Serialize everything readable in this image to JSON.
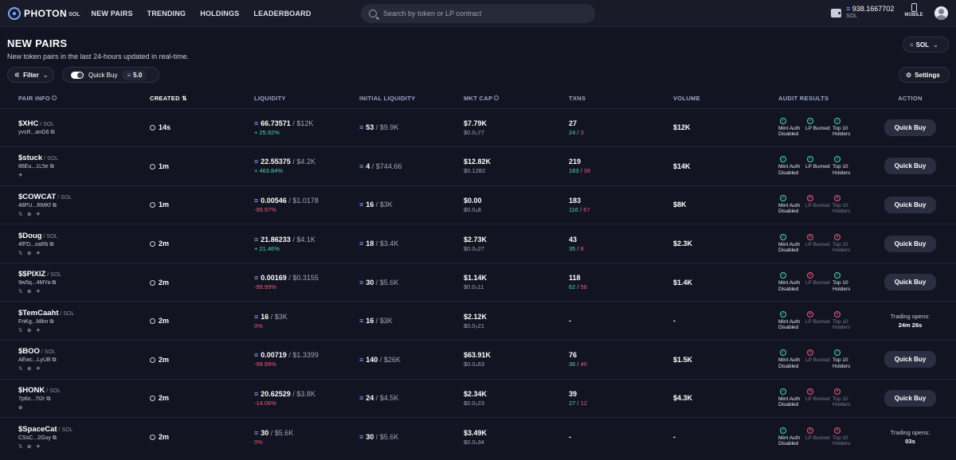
{
  "brand": {
    "name": "PHOTON",
    "sub": "SOL"
  },
  "nav": [
    "NEW PAIRS",
    "TRENDING",
    "HOLDINGS",
    "LEADERBOARD"
  ],
  "search": {
    "placeholder": "Search by token or LP contract"
  },
  "wallet": {
    "balance": "938.1667702",
    "currency": "SOL"
  },
  "mobile_label": "MOBILE",
  "page": {
    "title": "NEW PAIRS",
    "subtitle": "New token pairs in the last 24-hours updated in real-time."
  },
  "chain_select": "SOL",
  "filter_label": "Filter",
  "quick_buy": {
    "label": "Quick Buy",
    "amount": "5.0"
  },
  "settings_label": "Settings",
  "columns": [
    "PAIR INFO",
    "CREATED",
    "LIQUIDITY",
    "INITIAL LIQUIDITY",
    "MKT CAP",
    "TXNS",
    "VOLUME",
    "AUDIT RESULTS",
    "ACTION"
  ],
  "audit_labels": [
    "Mint Auth Disabled",
    "LP Burned",
    "Top 10 Holders"
  ],
  "quick_buy_button": "Quick Buy",
  "rows": [
    {
      "sym": "$XHC",
      "chain": "SOL",
      "addr": "yvsR...anG6",
      "socials": "",
      "created": "14s",
      "liq": "66.73571",
      "liq_usd": "$12K",
      "liq_pct": "+ 25.92%",
      "pct_class": "pos",
      "init": "53",
      "init_usd": "$9.9K",
      "mc": "$7.79K",
      "mc_sub": "$0.0₅77",
      "tx": "27",
      "buys": "24",
      "sells": "3",
      "vol": "$12K",
      "audit": [
        "ok",
        "ok",
        "ok"
      ],
      "action": "buy"
    },
    {
      "sym": "$stuck",
      "chain": "SOL",
      "addr": "86Eu...1L5e",
      "socials": "✈",
      "created": "1m",
      "liq": "22.55375",
      "liq_usd": "$4.2K",
      "liq_pct": "+ 463.84%",
      "pct_class": "pos",
      "init": "4",
      "init_usd": "$744.66",
      "mc": "$12.82K",
      "mc_sub": "$0.1282",
      "tx": "219",
      "buys": "183",
      "sells": "36",
      "vol": "$14K",
      "audit": [
        "ok",
        "ok",
        "ok"
      ],
      "action": "buy"
    },
    {
      "sym": "$COWCAT",
      "chain": "SOL",
      "addr": "48PU...RMKf",
      "socials": "𝕏 ⊕ ✈",
      "created": "1m",
      "liq": "0.00546",
      "liq_usd": "$1.0178",
      "liq_pct": "-99.97%",
      "pct_class": "neg",
      "init": "16",
      "init_usd": "$3K",
      "mc": "$0.00",
      "mc_sub": "$0.0₉8",
      "tx": "183",
      "buys": "116",
      "sells": "67",
      "vol": "$8K",
      "audit": [
        "ok",
        "bad",
        "bad"
      ],
      "action": "buy"
    },
    {
      "sym": "$Doug",
      "chain": "SOL",
      "addr": "4fFD...xaRb",
      "socials": "𝕏 ⊕ ✈",
      "created": "2m",
      "liq": "21.86233",
      "liq_usd": "$4.1K",
      "liq_pct": "+ 21.46%",
      "pct_class": "pos",
      "init": "18",
      "init_usd": "$3.4K",
      "mc": "$2.73K",
      "mc_sub": "$0.0₅27",
      "tx": "43",
      "buys": "35",
      "sells": "8",
      "vol": "$2.3K",
      "audit": [
        "ok",
        "bad",
        "bad"
      ],
      "action": "buy"
    },
    {
      "sym": "$$PIXIZ",
      "chain": "SOL",
      "addr": "9w5q...4MYa",
      "socials": "𝕏 ⊕ ✈",
      "created": "2m",
      "liq": "0.00169",
      "liq_usd": "$0.3155",
      "liq_pct": "-99.99%",
      "pct_class": "neg",
      "init": "30",
      "init_usd": "$5.6K",
      "mc": "$1.14K",
      "mc_sub": "$0.0₅11",
      "tx": "118",
      "buys": "62",
      "sells": "56",
      "vol": "$1.4K",
      "audit": [
        "ok",
        "bad",
        "ok"
      ],
      "action": "buy"
    },
    {
      "sym": "$TemCaaht",
      "chain": "SOL",
      "addr": "FnKg...Mikn",
      "socials": "𝕏 ⊕ ✈",
      "created": "2m",
      "liq": "16",
      "liq_usd": "$3K",
      "liq_pct": "0%",
      "pct_class": "neg",
      "init": "16",
      "init_usd": "$3K",
      "mc": "$2.12K",
      "mc_sub": "$0.0₅21",
      "tx": "-",
      "buys": "",
      "sells": "",
      "vol": "-",
      "audit": [
        "ok",
        "bad",
        "bad"
      ],
      "action": "trade",
      "trade_text": "Trading opens:",
      "trade_time": "24m 26s"
    },
    {
      "sym": "$BOO",
      "chain": "SOL",
      "addr": "AEwc...LyUB",
      "socials": "𝕏 ⊕ ✈",
      "created": "2m",
      "liq": "0.00719",
      "liq_usd": "$1.3399",
      "liq_pct": "-99.99%",
      "pct_class": "neg",
      "init": "140",
      "init_usd": "$26K",
      "mc": "$63.91K",
      "mc_sub": "$0.0₄63",
      "tx": "76",
      "buys": "36",
      "sells": "40",
      "vol": "$1.5K",
      "audit": [
        "ok",
        "bad",
        "ok"
      ],
      "action": "buy"
    },
    {
      "sym": "$HONK",
      "chain": "SOL",
      "addr": "7p6o...7t2r",
      "socials": "⊕",
      "created": "2m",
      "liq": "20.62529",
      "liq_usd": "$3.8K",
      "liq_pct": "-14.06%",
      "pct_class": "neg",
      "init": "24",
      "init_usd": "$4.5K",
      "mc": "$2.34K",
      "mc_sub": "$0.0₅23",
      "tx": "39",
      "buys": "27",
      "sells": "12",
      "vol": "$4.3K",
      "audit": [
        "ok",
        "bad",
        "bad"
      ],
      "action": "buy"
    },
    {
      "sym": "$SpaceCat",
      "chain": "SOL",
      "addr": "CSsC...2Guy",
      "socials": "𝕏 ⊕ ✈",
      "created": "2m",
      "liq": "30",
      "liq_usd": "$5.6K",
      "liq_pct": "0%",
      "pct_class": "neg",
      "init": "30",
      "init_usd": "$5.6K",
      "mc": "$3.49K",
      "mc_sub": "$0.0₅34",
      "tx": "-",
      "buys": "",
      "sells": "",
      "vol": "-",
      "audit": [
        "ok",
        "bad",
        "bad"
      ],
      "action": "trade",
      "trade_text": "Trading opens:",
      "trade_time": "03s"
    }
  ]
}
